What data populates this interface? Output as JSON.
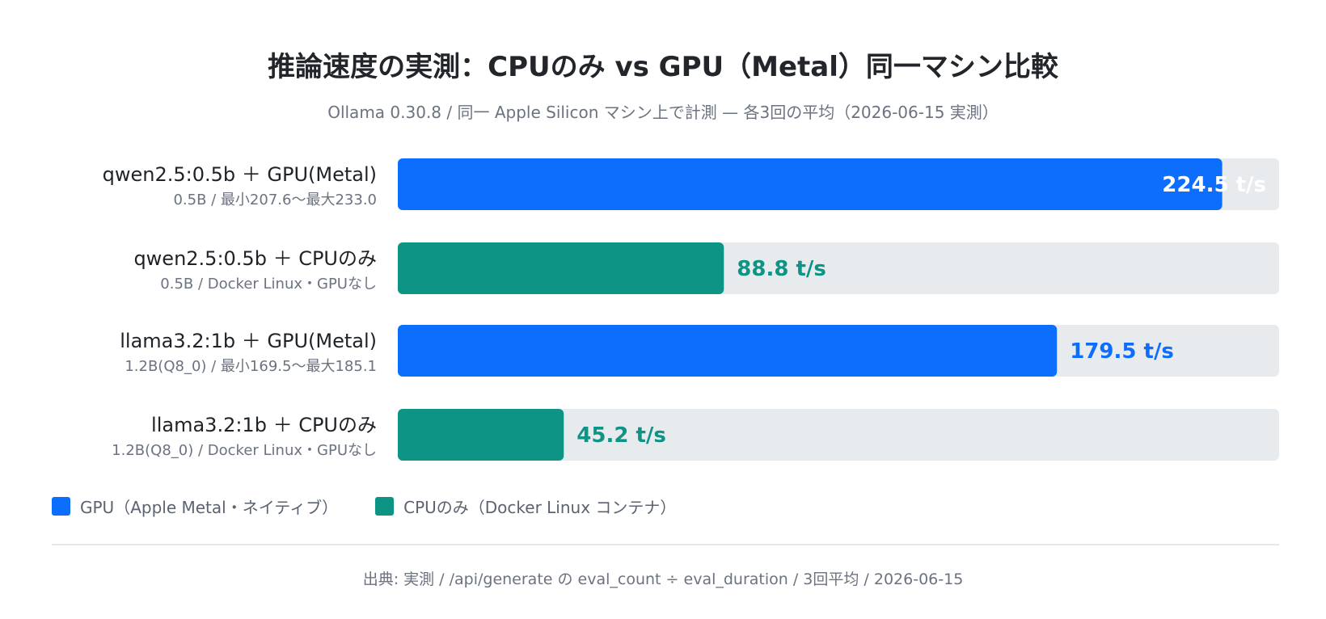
{
  "header": {
    "title": "推論速度の実測：CPUのみ vs GPU（Metal）同一マシン比較",
    "subtitle": "Ollama 0.30.8 / 同一 Apple Silicon マシン上で計測 — 各3回の平均（2026-06-15 実測）"
  },
  "colors": {
    "gpu": "#0d6efd",
    "cpu": "#0e9484",
    "track": "#e8ebee",
    "label_main": "#1f2328",
    "label_sub": "#6b7280"
  },
  "chart_data": {
    "type": "bar",
    "orientation": "horizontal",
    "unit": "t/s",
    "xlim": [
      0,
      240
    ],
    "grid": false,
    "categories": [
      "qwen2.5:0.5b ＋ GPU(Metal)",
      "qwen2.5:0.5b ＋ CPUのみ",
      "llama3.2:1b ＋ GPU(Metal)",
      "llama3.2:1b ＋ CPUのみ"
    ],
    "sublabels": [
      "0.5B / 最小207.6〜最大233.0",
      "0.5B / Docker Linux・GPUなし",
      "1.2B(Q8_0) / 最小169.5〜最大185.1",
      "1.2B(Q8_0) / Docker Linux・GPUなし"
    ],
    "values": [
      224.5,
      88.8,
      179.5,
      45.2
    ],
    "value_labels": [
      "224.5 t/s",
      "88.8 t/s",
      "179.5 t/s",
      "45.2 t/s"
    ],
    "series_kind": [
      "gpu",
      "cpu",
      "gpu",
      "cpu"
    ],
    "legend": [
      {
        "key": "gpu",
        "label": "GPU（Apple Metal・ネイティブ）"
      },
      {
        "key": "cpu",
        "label": "CPUのみ（Docker Linux コンテナ）"
      }
    ],
    "legend_position": "bottom-left"
  },
  "footer": {
    "source": "出典: 実測 / /api/generate の eval_count ÷ eval_duration / 3回平均 / 2026-06-15"
  }
}
